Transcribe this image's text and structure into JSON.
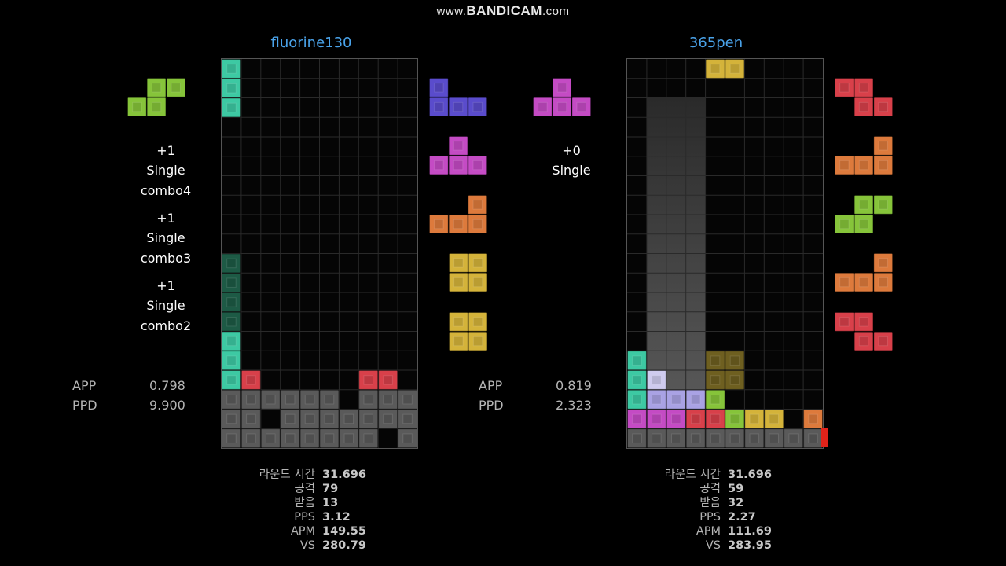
{
  "watermark": {
    "prefix": "www.",
    "brand": "BANDICAM",
    "suffix": ".com"
  },
  "colors": {
    "I": "#3dc9a3",
    "I_dim": "#1d5a45",
    "O": "#d4b33a",
    "O_dim": "#6e5f20",
    "T": "#c44bc4",
    "S": "#86c43a",
    "Z": "#d8404a",
    "L": "#dd7a3c",
    "J": "#5a4ccc",
    "G": "#5a5a5a",
    "W": "#cfcbef",
    "P": "#a9a2e4",
    "meter": "#e0231a",
    "name": "#4aa3ea"
  },
  "players": [
    {
      "name": "fluorine130",
      "hold": "S",
      "next": [
        "J",
        "T",
        "L",
        "O",
        "O"
      ],
      "actions": [
        {
          "lines": [
            "+1",
            "Single",
            "combo4"
          ]
        },
        {
          "lines": [
            "+1",
            "Single",
            "combo3"
          ]
        },
        {
          "lines": [
            "+1",
            "Single",
            "combo2"
          ]
        }
      ],
      "app": {
        "label": "APP",
        "value": "0.798"
      },
      "ppd": {
        "label": "PPD",
        "value": "9.900"
      },
      "grid": [
        "I.........",
        "I.........",
        "I.........",
        "..........",
        "..........",
        "..........",
        "..........",
        "..........",
        "..........",
        "..........",
        "i.........",
        "i.........",
        "i.........",
        "i.........",
        "I.........",
        "I.........",
        "IZ.....ZZ.",
        "GGGGGG.GGG",
        "GG.GGGGGGG",
        "GGGGGGGG.G"
      ],
      "stats": [
        {
          "label": "라운드 시간",
          "value": "31.696"
        },
        {
          "label": "공격",
          "value": "79"
        },
        {
          "label": "받음",
          "value": "13"
        },
        {
          "label": "PPS",
          "value": "3.12"
        },
        {
          "label": "APM",
          "value": "149.55"
        },
        {
          "label": "VS",
          "value": "280.79"
        }
      ]
    },
    {
      "name": "365pen",
      "hold": "T",
      "next": [
        "Z",
        "L",
        "S",
        "L",
        "Z"
      ],
      "actions": [
        {
          "lines": [
            "+0",
            "Single"
          ]
        }
      ],
      "app": {
        "label": "APP",
        "value": "0.819"
      },
      "ppd": {
        "label": "PPD",
        "value": "2.323"
      },
      "grid": [
        "....OO....",
        "..........",
        "..........",
        "..........",
        "..........",
        "..........",
        "..........",
        "..........",
        "..........",
        "..........",
        "..........",
        "..........",
        "..........",
        "..........",
        "..........",
        "I...oo....",
        "IW..oo....",
        "IPPPS.....",
        "TTTZZSOO.L",
        "GGGGGGGGGG"
      ],
      "stats": [
        {
          "label": "라운드 시간",
          "value": "31.696"
        },
        {
          "label": "공격",
          "value": "59"
        },
        {
          "label": "받음",
          "value": "32"
        },
        {
          "label": "PPS",
          "value": "2.27"
        },
        {
          "label": "APM",
          "value": "111.69"
        },
        {
          "label": "VS",
          "value": "283.95"
        }
      ]
    }
  ]
}
